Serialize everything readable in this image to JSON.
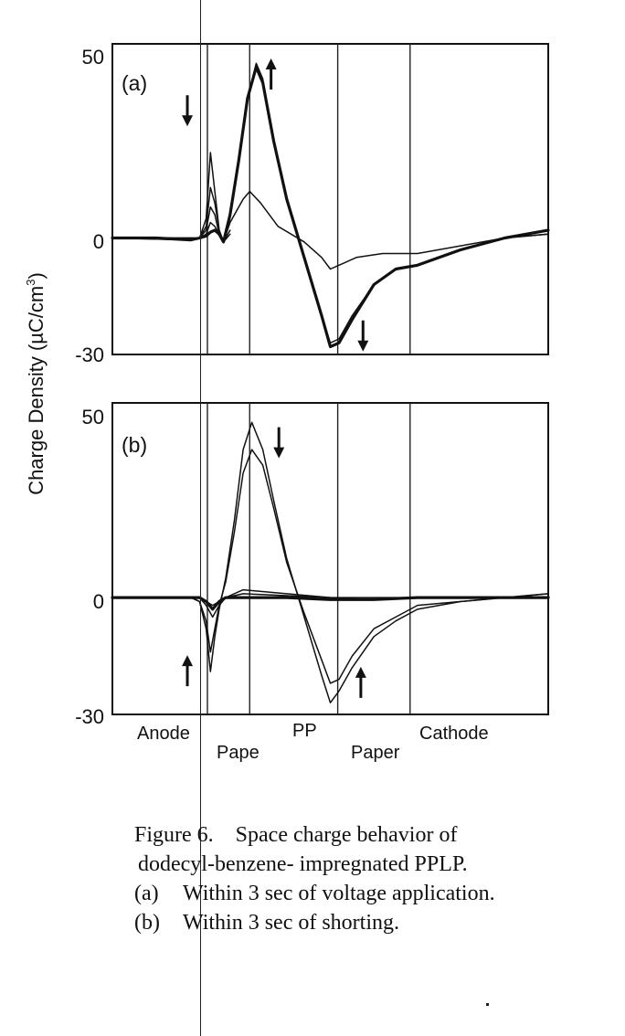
{
  "figure": {
    "caption": {
      "title": "Figure 6.",
      "line1": "Space charge behavior of",
      "line2": "dodecyl-benzene- impregnated PPLP.",
      "items": [
        {
          "tag": "(a)",
          "text": "Within 3 sec of voltage application."
        },
        {
          "tag": "(b)",
          "text": "Within 3 sec of shorting."
        }
      ]
    },
    "ylabel_main": "Charge Density  (µC/cm",
    "ylabel_sup": "3",
    "ylabel_end": ")"
  },
  "chart_data": [
    {
      "type": "line",
      "panel": "(a)",
      "ylim": [
        -30,
        50
      ],
      "yticks": [
        "50",
        "0",
        "-30"
      ],
      "xlim": [
        0,
        1
      ],
      "layer_boundaries": [
        0.218,
        0.315,
        0.517,
        0.683
      ],
      "arrows": [
        {
          "x": 0.172,
          "y": 33,
          "dir": "down"
        },
        {
          "x": 0.364,
          "y": 42,
          "dir": "up"
        },
        {
          "x": 0.575,
          "y": -25,
          "dir": "down"
        }
      ],
      "series": [
        {
          "style": "thick",
          "x": [
            0,
            0.1,
            0.18,
            0.2,
            0.215,
            0.225,
            0.235,
            0.245,
            0.255,
            0.27,
            0.29,
            0.31,
            0.33,
            0.345,
            0.37,
            0.4,
            0.44,
            0.48,
            0.5,
            0.52,
            0.55,
            0.6,
            0.65,
            0.7,
            0.8,
            0.9,
            1.0
          ],
          "y": [
            0,
            0,
            -0.5,
            0,
            0.5,
            1.5,
            2,
            1,
            -1,
            6,
            20,
            36,
            44,
            40,
            25,
            10,
            -5,
            -20,
            -28,
            -27,
            -21,
            -12,
            -8,
            -7,
            -3,
            0,
            2
          ]
        },
        {
          "style": "thin",
          "x": [
            0,
            0.18,
            0.2,
            0.215,
            0.225,
            0.235,
            0.245,
            0.255,
            0.27,
            0.29,
            0.31,
            0.33,
            0.345,
            0.37,
            0.4,
            0.44,
            0.48,
            0.5,
            0.52,
            0.55,
            0.6,
            0.65,
            0.7,
            0.8,
            0.9,
            1.0
          ],
          "y": [
            0,
            -0.5,
            0,
            5,
            22,
            12,
            2,
            -1,
            6,
            20,
            36,
            45,
            41,
            25,
            10,
            -5,
            -20,
            -27,
            -26,
            -20,
            -12,
            -8,
            -7,
            -3,
            0,
            1
          ]
        },
        {
          "style": "thin",
          "x": [
            0,
            0.18,
            0.2,
            0.215,
            0.225,
            0.235,
            0.245,
            0.255,
            0.27,
            0.3,
            0.315,
            0.34,
            0.38,
            0.44,
            0.48,
            0.5,
            0.52,
            0.56,
            0.62,
            0.7,
            0.8,
            0.9,
            1.0
          ],
          "y": [
            0,
            -0.5,
            0,
            3,
            13,
            9,
            2,
            -1,
            4,
            10,
            12,
            9,
            3,
            -1,
            -5,
            -8,
            -7,
            -5,
            -4,
            -4,
            -2,
            0,
            1
          ]
        },
        {
          "style": "thin",
          "x": [
            0,
            0.2,
            0.215,
            0.225,
            0.235,
            0.245,
            0.255,
            0.27
          ],
          "y": [
            0,
            0,
            2,
            8,
            6,
            1,
            -1,
            2
          ]
        },
        {
          "style": "thin",
          "x": [
            0,
            0.2,
            0.215,
            0.225,
            0.235,
            0.245,
            0.255,
            0.27
          ],
          "y": [
            0,
            0,
            1,
            4,
            3,
            1,
            -1,
            1
          ]
        }
      ]
    },
    {
      "type": "line",
      "panel": "(b)",
      "ylim": [
        -30,
        50
      ],
      "yticks": [
        "50",
        "0",
        "-30"
      ],
      "xlim": [
        0,
        1
      ],
      "layer_boundaries": [
        0.218,
        0.315,
        0.517,
        0.683
      ],
      "regions": [
        "Anode",
        "Pape",
        "PP",
        "Paper",
        "Cathode"
      ],
      "arrows": [
        {
          "x": 0.382,
          "y": 40,
          "dir": "down"
        },
        {
          "x": 0.172,
          "y": -19,
          "dir": "up"
        },
        {
          "x": 0.57,
          "y": -22,
          "dir": "up"
        }
      ],
      "series": [
        {
          "style": "thin",
          "x": [
            0,
            0.18,
            0.2,
            0.215,
            0.225,
            0.235,
            0.245,
            0.26,
            0.28,
            0.3,
            0.32,
            0.345,
            0.37,
            0.4,
            0.44,
            0.48,
            0.5,
            0.52,
            0.55,
            0.6,
            0.65,
            0.7,
            0.8,
            0.9,
            1.0
          ],
          "y": [
            0,
            0,
            -1,
            -8,
            -19,
            -10,
            -3,
            5,
            20,
            38,
            45,
            38,
            25,
            10,
            -5,
            -20,
            -27,
            -24,
            -18,
            -10,
            -6,
            -3,
            -1,
            0,
            1
          ]
        },
        {
          "style": "thin",
          "x": [
            0,
            0.18,
            0.2,
            0.215,
            0.225,
            0.235,
            0.245,
            0.26,
            0.28,
            0.3,
            0.32,
            0.345,
            0.37,
            0.4,
            0.44,
            0.48,
            0.5,
            0.52,
            0.55,
            0.6,
            0.65,
            0.7,
            0.8,
            0.9,
            1.0
          ],
          "y": [
            0,
            0,
            -1,
            -6,
            -14,
            -8,
            -2,
            4,
            17,
            32,
            38,
            34,
            23,
            9,
            -4,
            -16,
            -22,
            -21,
            -15,
            -8,
            -5,
            -2,
            -1,
            0,
            1
          ]
        },
        {
          "style": "thick",
          "x": [
            0,
            0.1,
            0.2,
            0.215,
            0.23,
            0.245,
            0.26,
            0.3,
            0.4,
            0.5,
            0.6,
            0.7,
            0.8,
            0.9,
            1.0
          ],
          "y": [
            0,
            0,
            0,
            -1,
            -3,
            -1,
            0,
            0,
            0,
            -0.5,
            -0.5,
            0,
            0,
            0,
            0
          ]
        },
        {
          "style": "thin",
          "x": [
            0,
            0.2,
            0.215,
            0.23,
            0.245,
            0.26,
            0.3,
            0.4,
            0.5,
            0.6,
            0.7,
            0.8,
            0.9,
            1.0
          ],
          "y": [
            0,
            0,
            -2,
            -5,
            -2,
            0,
            2,
            1,
            0,
            -0.5,
            0,
            0,
            0,
            0
          ]
        },
        {
          "style": "thin",
          "x": [
            0,
            0.2,
            0.215,
            0.23,
            0.245,
            0.26,
            0.3,
            0.4,
            0.5,
            0.6,
            0.7,
            0.8,
            0.9,
            1.0
          ],
          "y": [
            0,
            0,
            -1,
            -2,
            -1,
            0,
            1,
            0.5,
            0,
            0,
            0,
            0,
            0,
            0
          ]
        }
      ]
    }
  ]
}
